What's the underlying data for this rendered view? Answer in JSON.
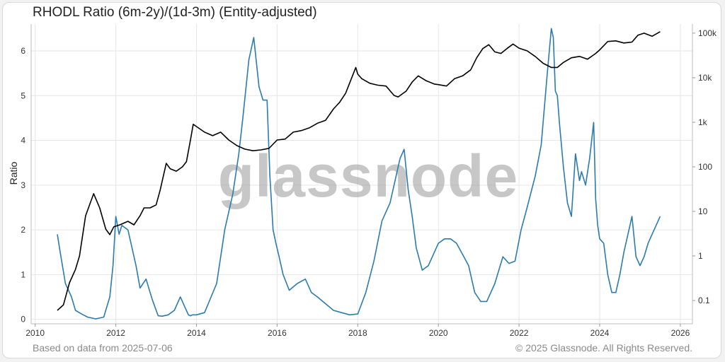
{
  "title": "RHODL Ratio (6m-2y)/(1d-3m) (Entity-adjusted)",
  "footer": {
    "source_note": "Based on data from 2025-07-06",
    "copyright": "© 2025 Glassnode. All Rights Reserved."
  },
  "watermark": "glassnode",
  "colors": {
    "ratio_line": "#2b7bb0",
    "price_line": "#000000",
    "grid": "#e6e6e6",
    "background": "#ffffff"
  },
  "chart_data": {
    "type": "line",
    "title": "RHODL Ratio (6m-2y)/(1d-3m) (Entity-adjusted)",
    "xlabel": "",
    "ylabel": "Ratio",
    "xlim": [
      2009.9,
      2026.3
    ],
    "ylim": [
      -0.1,
      6.6
    ],
    "y2_scale": "log",
    "y2lim": [
      0.03,
      160000
    ],
    "x_ticks": [
      "2010",
      "2012",
      "2014",
      "2016",
      "2018",
      "2020",
      "2022",
      "2024",
      "2026"
    ],
    "y_ticks": [
      "0",
      "1",
      "2",
      "3",
      "4",
      "5",
      "6"
    ],
    "y2_ticks": [
      "0.1",
      "1",
      "10",
      "100",
      "1k",
      "10k",
      "100k"
    ],
    "grid": true,
    "series": [
      {
        "axis": "left",
        "color": "#2b7bb0",
        "x": [
          2010.55,
          2010.62,
          2010.75,
          2010.9,
          2011.0,
          2011.15,
          2011.3,
          2011.5,
          2011.7,
          2011.85,
          2011.93,
          2012.0,
          2012.08,
          2012.15,
          2012.3,
          2012.5,
          2012.6,
          2012.75,
          2012.9,
          2013.05,
          2013.15,
          2013.3,
          2013.45,
          2013.6,
          2013.7,
          2013.8,
          2013.85,
          2013.9,
          2014.0,
          2014.2,
          2014.5,
          2014.7,
          2014.9,
          2015.05,
          2015.15,
          2015.3,
          2015.42,
          2015.55,
          2015.65,
          2015.75,
          2015.82,
          2015.9,
          2015.97,
          2016.05,
          2016.15,
          2016.3,
          2016.5,
          2016.7,
          2016.85,
          2017.0,
          2017.2,
          2017.4,
          2017.6,
          2017.8,
          2018.0,
          2018.2,
          2018.4,
          2018.6,
          2018.8,
          2018.95,
          2019.05,
          2019.15,
          2019.25,
          2019.35,
          2019.45,
          2019.6,
          2019.75,
          2019.9,
          2020.0,
          2020.15,
          2020.3,
          2020.45,
          2020.6,
          2020.75,
          2020.9,
          2021.05,
          2021.2,
          2021.4,
          2021.6,
          2021.75,
          2021.9,
          2022.05,
          2022.2,
          2022.4,
          2022.55,
          2022.7,
          2022.8,
          2022.85,
          2022.9,
          2022.95,
          2023.0,
          2023.1,
          2023.2,
          2023.3,
          2023.4,
          2023.5,
          2023.55,
          2023.65,
          2023.75,
          2023.85,
          2023.9,
          2023.95,
          2024.0,
          2024.1,
          2024.2,
          2024.3,
          2024.4,
          2024.5,
          2024.6,
          2024.7,
          2024.8,
          2024.9,
          2025.0,
          2025.1,
          2025.2,
          2025.3,
          2025.4,
          2025.5
        ],
        "y": [
          1.9,
          1.5,
          0.8,
          0.5,
          0.2,
          0.12,
          0.05,
          0.01,
          0.05,
          0.5,
          1.2,
          2.3,
          1.9,
          2.1,
          2.0,
          1.2,
          0.7,
          0.9,
          0.45,
          0.08,
          0.07,
          0.1,
          0.2,
          0.5,
          0.3,
          0.1,
          0.08,
          0.1,
          0.1,
          0.15,
          0.8,
          2.0,
          2.8,
          3.7,
          4.5,
          5.8,
          6.3,
          5.2,
          4.9,
          4.9,
          3.2,
          2.0,
          1.7,
          1.4,
          1.0,
          0.65,
          0.8,
          0.9,
          0.6,
          0.5,
          0.35,
          0.2,
          0.15,
          0.1,
          0.12,
          0.6,
          1.3,
          2.2,
          2.6,
          3.2,
          3.6,
          3.8,
          2.9,
          2.3,
          1.6,
          1.1,
          1.2,
          1.5,
          1.7,
          1.8,
          1.8,
          1.7,
          1.45,
          1.2,
          0.6,
          0.4,
          0.4,
          0.8,
          1.4,
          1.25,
          1.3,
          2.0,
          2.5,
          3.2,
          3.9,
          5.5,
          6.5,
          6.3,
          5.1,
          5.0,
          4.4,
          3.4,
          2.6,
          2.3,
          3.7,
          3.1,
          3.3,
          3.0,
          3.6,
          4.4,
          2.7,
          2.1,
          1.8,
          1.7,
          1.0,
          0.6,
          0.6,
          1.0,
          1.5,
          1.9,
          2.3,
          1.4,
          1.2,
          1.4,
          1.7,
          1.9,
          2.1,
          2.3
        ]
      },
      {
        "axis": "right",
        "color": "#000000",
        "x": [
          2010.55,
          2010.7,
          2010.85,
          2011.0,
          2011.1,
          2011.25,
          2011.45,
          2011.6,
          2011.75,
          2011.85,
          2011.95,
          2012.1,
          2012.3,
          2012.45,
          2012.6,
          2012.7,
          2012.85,
          2013.0,
          2013.1,
          2013.25,
          2013.35,
          2013.5,
          2013.65,
          2013.75,
          2013.85,
          2013.92,
          2014.0,
          2014.2,
          2014.4,
          2014.6,
          2014.8,
          2015.0,
          2015.2,
          2015.4,
          2015.6,
          2015.8,
          2016.0,
          2016.2,
          2016.4,
          2016.6,
          2016.8,
          2017.0,
          2017.2,
          2017.4,
          2017.55,
          2017.7,
          2017.85,
          2017.95,
          2018.0,
          2018.1,
          2018.3,
          2018.5,
          2018.7,
          2018.9,
          2019.0,
          2019.2,
          2019.35,
          2019.5,
          2019.7,
          2019.9,
          2020.0,
          2020.2,
          2020.4,
          2020.6,
          2020.8,
          2020.95,
          2021.1,
          2021.25,
          2021.4,
          2021.55,
          2021.7,
          2021.85,
          2022.0,
          2022.2,
          2022.4,
          2022.6,
          2022.8,
          2022.95,
          2023.1,
          2023.3,
          2023.5,
          2023.7,
          2023.9,
          2024.0,
          2024.2,
          2024.4,
          2024.6,
          2024.8,
          2024.95,
          2025.1,
          2025.3,
          2025.5
        ],
        "y": [
          0.06,
          0.08,
          0.25,
          0.5,
          1.0,
          8,
          25,
          12,
          4,
          3,
          4.5,
          5,
          6,
          5,
          8,
          12,
          12,
          14,
          30,
          120,
          90,
          80,
          100,
          130,
          400,
          900,
          800,
          600,
          500,
          600,
          400,
          300,
          250,
          230,
          240,
          260,
          400,
          420,
          600,
          650,
          750,
          950,
          1100,
          2000,
          2800,
          4500,
          10000,
          17000,
          12000,
          9500,
          7500,
          6800,
          6500,
          4000,
          3700,
          5000,
          8000,
          11000,
          8500,
          7200,
          7000,
          6500,
          9500,
          11000,
          15000,
          28000,
          45000,
          55000,
          38000,
          35000,
          45000,
          57000,
          46000,
          40000,
          30000,
          21000,
          17000,
          17000,
          22000,
          28000,
          30000,
          26000,
          35000,
          42000,
          65000,
          67000,
          60000,
          63000,
          90000,
          100000,
          85000,
          108000
        ]
      }
    ]
  }
}
